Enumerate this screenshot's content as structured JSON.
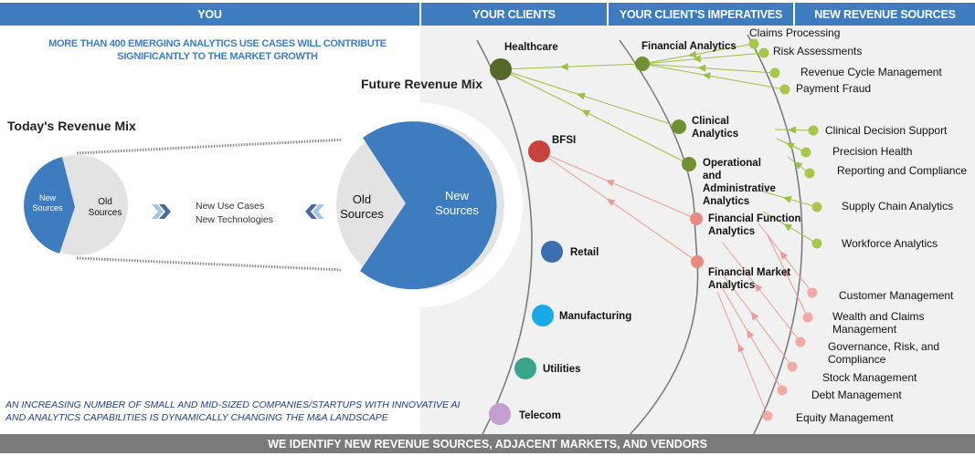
{
  "headers": {
    "you": "YOU",
    "clients": "YOUR CLIENTS",
    "imperatives": "YOUR CLIENT'S IMPERATIVES",
    "sources": "NEW REVENUE SOURCES"
  },
  "tagline": [
    "MORE THAN 400 EMERGING ANALYTICS USE CASES  WILL CONTRIBUTE",
    "SIGNIFICANTLY TO THE MARKET GROWTH"
  ],
  "today_mix": {
    "title": "Today's Revenue Mix",
    "new_label": [
      "New",
      "Sources"
    ],
    "old_label": [
      "Old",
      "Sources"
    ]
  },
  "future_mix": {
    "title": "Future Revenue Mix",
    "new_label": [
      "New",
      "Sources"
    ],
    "old_label": [
      "Old",
      "Sources"
    ]
  },
  "drivers": [
    "New Use Cases",
    "New Technologies"
  ],
  "bottom_note": [
    "AN INCREASING NUMBER OF SMALL AND MID-SIZED COMPANIES/STARTUPS WITH INNOVATIVE  AI",
    "AND ANALYTICS CAPABILITIES IS DYNAMICALLY CHANGING THE M&A LANDSCAPE"
  ],
  "footer": "WE IDENTIFY NEW REVENUE SOURCES, ADJACENT MARKETS, AND VENDORS",
  "colors": {
    "header": "#3d7dbf",
    "new_sources": "#3d7dbf",
    "old_sources": "#e3e3e3",
    "healthcare_link": "#9dbf45",
    "bfsi_link": "#ec9a95"
  },
  "clients": [
    {
      "name": "Healthcare",
      "color": "#56682a"
    },
    {
      "name": "BFSI",
      "color": "#c8423b"
    },
    {
      "name": "Retail",
      "color": "#3b6fb0"
    },
    {
      "name": "Manufacturing",
      "color": "#1aa9e8"
    },
    {
      "name": "Utilities",
      "color": "#3aa58a"
    },
    {
      "name": "Telecom",
      "color": "#c39fd0"
    }
  ],
  "imperatives": [
    {
      "name": "Financial Analytics",
      "client": "Healthcare",
      "color": "#6f9133"
    },
    {
      "name": "Clinical Analytics",
      "client": "Healthcare",
      "color": "#6f9133"
    },
    {
      "name": "Operational and Administrative Analytics",
      "client": "Healthcare",
      "color": "#6f9133"
    },
    {
      "name": "Financial Function Analytics",
      "client": "BFSI",
      "color": "#e98a80"
    },
    {
      "name": "Financial Market Analytics",
      "client": "BFSI",
      "color": "#e98a80"
    }
  ],
  "sources": [
    {
      "name": "Claims Processing",
      "imperative": "Financial Analytics",
      "color": "#a6c84a"
    },
    {
      "name": "Risk Assessments",
      "imperative": "Financial Analytics",
      "color": "#a6c84a"
    },
    {
      "name": "Revenue Cycle Management",
      "imperative": "Financial Analytics",
      "color": "#a6c84a"
    },
    {
      "name": "Payment Fraud",
      "imperative": "Financial Analytics",
      "color": "#a6c84a"
    },
    {
      "name": "Clinical Decision Support",
      "imperative": "Clinical Analytics",
      "color": "#a6c84a"
    },
    {
      "name": "Precision Health",
      "imperative": "Clinical Analytics",
      "color": "#a6c84a"
    },
    {
      "name": "Reporting and Compliance",
      "imperative": "Clinical Analytics",
      "color": "#a6c84a"
    },
    {
      "name": "Supply Chain Analytics",
      "imperative": "Operational and Administrative Analytics",
      "color": "#a6c84a"
    },
    {
      "name": "Workforce Analytics",
      "imperative": "Operational and Administrative Analytics",
      "color": "#a6c84a"
    },
    {
      "name": "Customer Management",
      "imperative": "Financial Function Analytics",
      "color": "#f0aaa5"
    },
    {
      "name": "Wealth and Claims Management",
      "imperative": "Financial Function Analytics",
      "color": "#f0aaa5"
    },
    {
      "name": "Governance, Risk, and Compliance",
      "imperative": "Financial Market Analytics",
      "color": "#f0aaa5"
    },
    {
      "name": "Stock Management",
      "imperative": "Financial Market Analytics",
      "color": "#f0aaa5"
    },
    {
      "name": "Debt Management",
      "imperative": "Financial Market Analytics",
      "color": "#f0aaa5"
    },
    {
      "name": "Equity Management",
      "imperative": "Financial Market Analytics",
      "color": "#f0aaa5"
    }
  ]
}
